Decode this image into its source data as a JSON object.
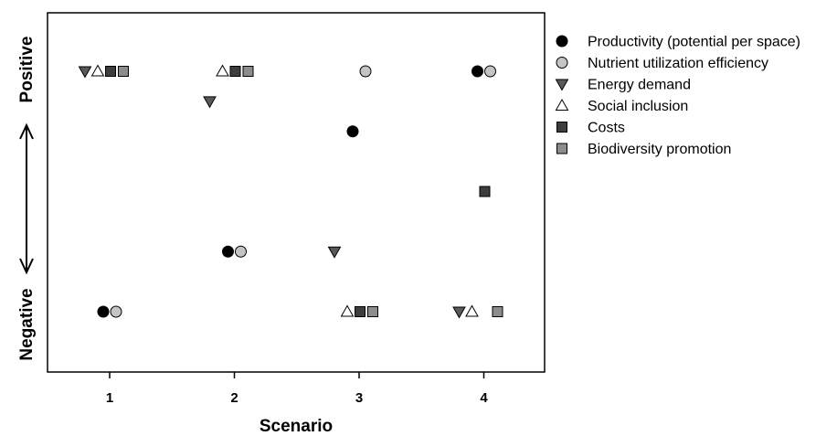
{
  "chart_data": {
    "type": "scatter",
    "xlabel": "Scenario",
    "x_categories": [
      "1",
      "2",
      "3",
      "4"
    ],
    "ylim": [
      0,
      5
    ],
    "y_scale_labels": {
      "high": "Positive",
      "low": "Negative"
    },
    "grid": false,
    "legend_position": "right",
    "series": [
      {
        "name": "Productivity (potential per space)",
        "marker": "circle",
        "fill": "#000000",
        "points": [
          {
            "x": 1,
            "y": 1
          },
          {
            "x": 2,
            "y": 2
          },
          {
            "x": 3,
            "y": 4
          },
          {
            "x": 4,
            "y": 5
          }
        ]
      },
      {
        "name": "Nutrient utilization efficiency",
        "marker": "circle",
        "fill": "#c4c4c4",
        "points": [
          {
            "x": 1,
            "y": 1
          },
          {
            "x": 2,
            "y": 2
          },
          {
            "x": 3,
            "y": 5
          },
          {
            "x": 4,
            "y": 5
          }
        ]
      },
      {
        "name": "Energy demand",
        "marker": "triangle-down",
        "fill": "#595959",
        "points": [
          {
            "x": 1,
            "y": 5
          },
          {
            "x": 2,
            "y": 4.5
          },
          {
            "x": 3,
            "y": 2
          },
          {
            "x": 4,
            "y": 1
          }
        ]
      },
      {
        "name": "Social inclusion",
        "marker": "triangle-up",
        "fill": "#ffffff",
        "points": [
          {
            "x": 1,
            "y": 5
          },
          {
            "x": 2,
            "y": 5
          },
          {
            "x": 3,
            "y": 1
          },
          {
            "x": 4,
            "y": 1
          }
        ]
      },
      {
        "name": "Costs",
        "marker": "square",
        "fill": "#3d3d3d",
        "points": [
          {
            "x": 1,
            "y": 5
          },
          {
            "x": 2,
            "y": 5
          },
          {
            "x": 3,
            "y": 1
          },
          {
            "x": 4,
            "y": 3
          }
        ]
      },
      {
        "name": "Biodiversity promotion",
        "marker": "square",
        "fill": "#8c8c8c",
        "points": [
          {
            "x": 1,
            "y": 5
          },
          {
            "x": 2,
            "y": 5
          },
          {
            "x": 3,
            "y": 1
          },
          {
            "x": 4,
            "y": 1
          }
        ]
      }
    ]
  }
}
